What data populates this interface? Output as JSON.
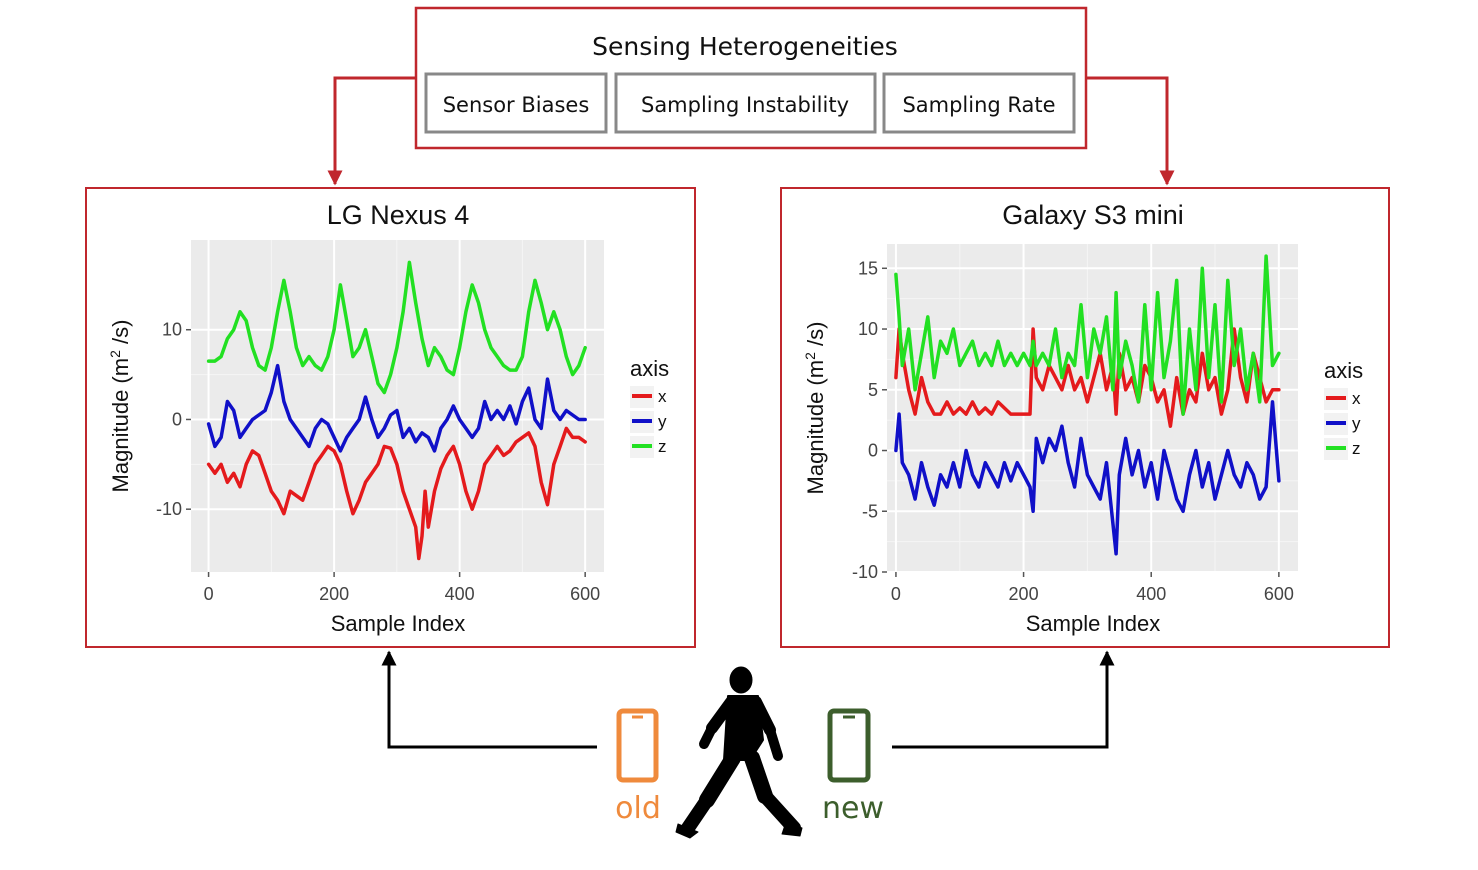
{
  "header": {
    "title": "Sensing Heterogeneities",
    "items": [
      "Sensor Biases",
      "Sampling Instability",
      "Sampling Rate"
    ]
  },
  "devices": {
    "old_label": "old",
    "new_label": "new",
    "old_color": "#ef8a3c",
    "new_color": "#3c5e2c",
    "person_icon": "walking-person-icon",
    "phone_icon": "smartphone-icon"
  },
  "colors": {
    "frame": "#c0272d",
    "x": "#e41a1c",
    "y": "#1010c8",
    "z": "#22e022",
    "panel_bg": "#ebebeb"
  },
  "chart_data": [
    {
      "type": "line",
      "title": "LG Nexus 4",
      "xlabel": "Sample Index",
      "ylabel": "Magnitude (m² /s)",
      "ylabel_parts": [
        "Magnitude (m",
        "2",
        " /s)"
      ],
      "xlim": [
        -28,
        630
      ],
      "ylim": [
        -17,
        20
      ],
      "xticks": [
        0,
        200,
        400,
        600
      ],
      "yticks": [
        -10,
        0,
        10
      ],
      "grid": true,
      "legend": {
        "title": "axis",
        "position": "right",
        "entries": [
          "x",
          "y",
          "z"
        ]
      },
      "series": [
        {
          "name": "x",
          "x": [
            0,
            10,
            20,
            30,
            40,
            50,
            60,
            70,
            80,
            90,
            100,
            110,
            120,
            130,
            140,
            150,
            160,
            170,
            180,
            190,
            200,
            210,
            220,
            230,
            240,
            250,
            260,
            270,
            280,
            290,
            300,
            310,
            320,
            330,
            335,
            340,
            345,
            350,
            360,
            370,
            380,
            390,
            400,
            410,
            420,
            430,
            440,
            450,
            460,
            470,
            480,
            490,
            500,
            510,
            520,
            530,
            540,
            550,
            560,
            570,
            580,
            590,
            600
          ],
          "y": [
            -5,
            -6,
            -5,
            -7,
            -6,
            -7.5,
            -5,
            -3.5,
            -4,
            -6,
            -8,
            -9,
            -10.5,
            -8,
            -8.5,
            -9,
            -7,
            -5,
            -4,
            -3,
            -3.5,
            -5,
            -8,
            -10.5,
            -9,
            -7,
            -6,
            -5,
            -3,
            -3.2,
            -5,
            -8,
            -10,
            -12,
            -15.5,
            -13,
            -8,
            -12,
            -8,
            -5.5,
            -4,
            -3,
            -5,
            -8,
            -10,
            -8,
            -5,
            -4,
            -3,
            -4,
            -3.5,
            -2.5,
            -2,
            -1.5,
            -3,
            -7,
            -9.5,
            -5,
            -3,
            -1,
            -2,
            -2,
            -2.5
          ]
        },
        {
          "name": "y",
          "x": [
            0,
            10,
            20,
            30,
            40,
            50,
            60,
            70,
            80,
            90,
            100,
            110,
            120,
            130,
            140,
            150,
            160,
            170,
            180,
            190,
            200,
            210,
            220,
            230,
            240,
            250,
            260,
            270,
            280,
            290,
            300,
            310,
            320,
            330,
            340,
            350,
            360,
            370,
            380,
            390,
            400,
            410,
            420,
            430,
            440,
            450,
            460,
            470,
            480,
            490,
            500,
            510,
            520,
            530,
            540,
            550,
            560,
            570,
            580,
            590,
            600
          ],
          "y": [
            -0.5,
            -3,
            -2,
            2,
            1,
            -2,
            -1,
            0,
            0.5,
            1,
            3,
            6,
            2,
            0,
            -1,
            -2,
            -3,
            -1,
            0,
            -0.5,
            -2,
            -3.5,
            -2,
            -1,
            0,
            2.5,
            0,
            -2,
            -1,
            0.5,
            1,
            -2,
            -1,
            -2.5,
            -1.5,
            -2,
            -3.5,
            -1,
            0,
            1.5,
            0,
            -1,
            -2,
            -1,
            2,
            0,
            1,
            0,
            1.5,
            -0.5,
            2,
            3.5,
            0,
            -1,
            4.5,
            1,
            0,
            1,
            0.5,
            0,
            0
          ]
        },
        {
          "name": "z",
          "x": [
            0,
            10,
            20,
            30,
            40,
            50,
            60,
            70,
            80,
            90,
            100,
            110,
            120,
            130,
            140,
            150,
            160,
            170,
            180,
            190,
            200,
            210,
            220,
            230,
            240,
            250,
            260,
            270,
            280,
            290,
            300,
            310,
            320,
            330,
            340,
            350,
            360,
            370,
            380,
            390,
            400,
            410,
            420,
            430,
            440,
            450,
            460,
            470,
            480,
            490,
            500,
            510,
            520,
            530,
            540,
            550,
            560,
            570,
            580,
            590,
            600
          ],
          "y": [
            6.5,
            6.5,
            7,
            9,
            10,
            12,
            11,
            8,
            6,
            5.5,
            8,
            12,
            15.5,
            12,
            8,
            6,
            7,
            6,
            5.5,
            7,
            10,
            15,
            11,
            7,
            8,
            10,
            7,
            4,
            3,
            5,
            8,
            12,
            17.5,
            13,
            9,
            6,
            8,
            7,
            5.5,
            5,
            8,
            12,
            15,
            13,
            10,
            8,
            7,
            6,
            5.5,
            5.5,
            7,
            12,
            15.5,
            13,
            10,
            12,
            10,
            7,
            5,
            6,
            8
          ]
        }
      ]
    },
    {
      "type": "line",
      "title": "Galaxy S3 mini",
      "xlabel": "Sample Index",
      "ylabel": "Magnitude (m² /s)",
      "ylabel_parts": [
        "Magnitude (m",
        "2",
        " /s)"
      ],
      "xlim": [
        -14,
        630
      ],
      "ylim": [
        -10,
        17
      ],
      "xticks": [
        0,
        200,
        400,
        600
      ],
      "yticks": [
        -10,
        -5,
        0,
        5,
        10,
        15
      ],
      "grid": true,
      "legend": {
        "title": "axis",
        "position": "right",
        "entries": [
          "x",
          "y",
          "z"
        ]
      },
      "series": [
        {
          "name": "x",
          "x": [
            0,
            5,
            10,
            20,
            30,
            40,
            50,
            60,
            70,
            80,
            90,
            100,
            110,
            120,
            130,
            140,
            150,
            160,
            170,
            180,
            190,
            200,
            210,
            215,
            220,
            230,
            240,
            250,
            260,
            270,
            280,
            290,
            300,
            310,
            320,
            330,
            340,
            345,
            350,
            360,
            370,
            380,
            390,
            400,
            410,
            420,
            430,
            440,
            450,
            460,
            470,
            480,
            490,
            500,
            510,
            520,
            530,
            540,
            550,
            560,
            570,
            580,
            590,
            600
          ],
          "y": [
            6,
            10,
            8,
            5,
            3,
            6,
            4,
            3,
            3,
            4,
            3,
            3.5,
            3,
            4,
            3,
            3.5,
            3,
            4,
            3.5,
            3,
            3,
            3,
            3,
            10,
            6,
            5,
            7,
            6,
            5,
            7,
            5,
            6,
            4,
            6,
            8,
            5,
            7,
            3,
            8,
            5,
            6,
            4,
            7,
            6,
            4,
            5,
            2,
            6,
            3,
            5,
            4,
            8,
            5,
            6,
            3,
            5,
            10,
            6,
            4,
            8,
            6,
            4,
            5,
            5
          ]
        },
        {
          "name": "y",
          "x": [
            0,
            5,
            10,
            20,
            30,
            40,
            50,
            60,
            70,
            80,
            90,
            100,
            110,
            120,
            130,
            140,
            150,
            160,
            170,
            180,
            190,
            200,
            210,
            215,
            220,
            230,
            240,
            250,
            260,
            270,
            280,
            290,
            300,
            310,
            320,
            330,
            340,
            345,
            350,
            360,
            370,
            380,
            390,
            400,
            410,
            420,
            430,
            440,
            450,
            460,
            470,
            480,
            490,
            500,
            510,
            520,
            530,
            540,
            550,
            560,
            570,
            580,
            590,
            600
          ],
          "y": [
            0,
            3,
            -1,
            -2,
            -4,
            -1,
            -3,
            -4.5,
            -2,
            -3,
            -1,
            -3,
            0,
            -2,
            -3,
            -1,
            -2,
            -3,
            -1,
            -2.5,
            -1,
            -2,
            -3,
            -5,
            1,
            -1,
            1,
            0,
            2,
            -1,
            -3,
            1,
            -2,
            -3,
            -4,
            -1,
            -6,
            -8.5,
            -2,
            1,
            -2,
            0,
            -3,
            -1,
            -4,
            0,
            -2,
            -4,
            -5,
            -2,
            0,
            -3,
            -1,
            -4,
            -2,
            0,
            -2,
            -3,
            -1,
            -2,
            -4,
            -3,
            4,
            -2.5
          ]
        },
        {
          "name": "z",
          "x": [
            0,
            5,
            10,
            20,
            30,
            40,
            50,
            60,
            70,
            80,
            90,
            100,
            110,
            120,
            130,
            140,
            150,
            160,
            170,
            180,
            190,
            200,
            210,
            215,
            220,
            230,
            240,
            250,
            260,
            270,
            280,
            290,
            300,
            310,
            320,
            330,
            340,
            345,
            350,
            360,
            370,
            380,
            390,
            400,
            410,
            420,
            430,
            440,
            450,
            460,
            470,
            480,
            490,
            500,
            510,
            520,
            530,
            540,
            550,
            560,
            570,
            580,
            590,
            600
          ],
          "y": [
            14.5,
            11,
            7,
            10,
            5,
            8,
            11,
            6,
            9,
            8,
            10,
            7,
            8,
            9,
            7,
            8,
            7,
            9,
            7,
            8,
            7,
            8,
            7,
            9,
            7,
            8,
            7,
            10,
            6,
            8,
            7,
            12,
            6,
            10,
            8,
            11,
            5,
            13,
            6,
            9,
            7,
            4,
            12,
            5,
            13,
            6,
            9,
            14,
            3,
            10,
            5,
            15,
            6,
            12,
            4,
            14,
            7,
            10,
            5,
            8,
            4,
            16,
            7,
            8
          ]
        }
      ]
    }
  ]
}
